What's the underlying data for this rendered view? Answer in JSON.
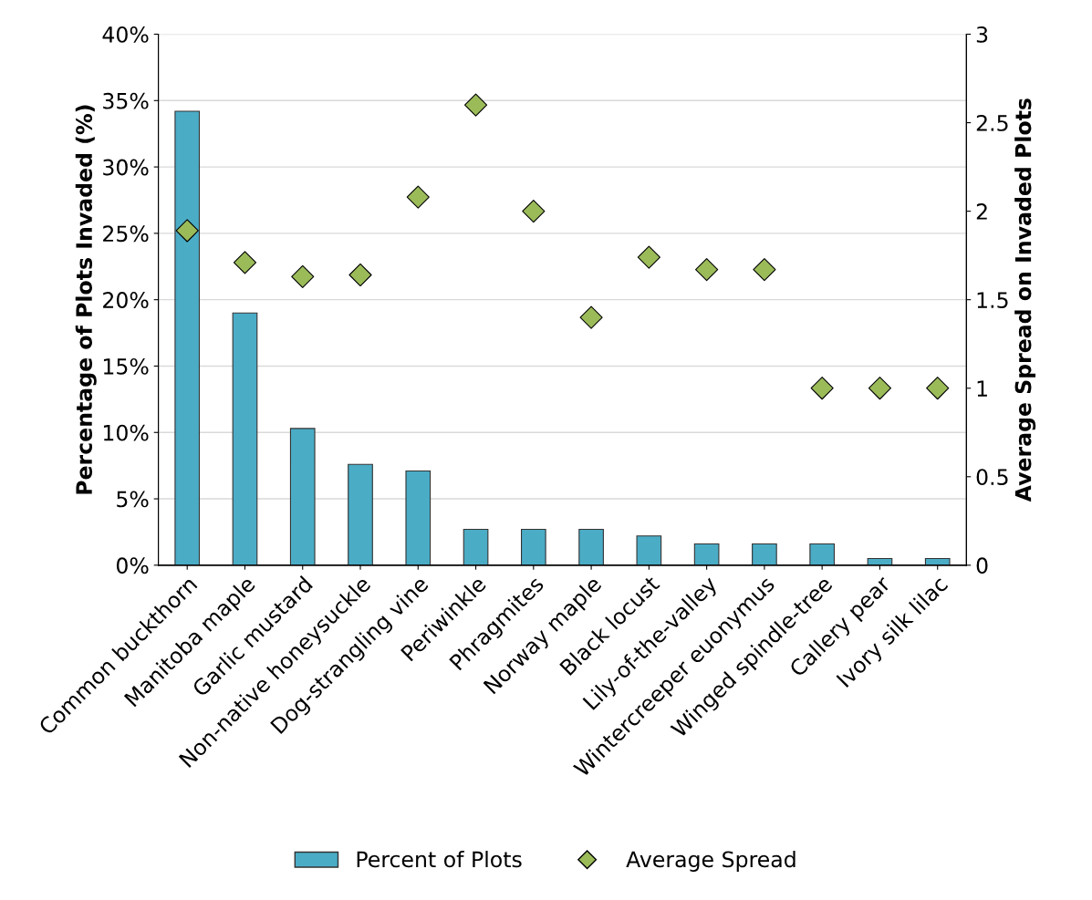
{
  "chart_data": {
    "type": "bar",
    "ylabel": "Percentage of Plots Invaded (%)",
    "y2label": "Average Spread on Invaded Plots",
    "categories": [
      "Common buckthorn",
      "Manitoba maple",
      "Garlic mustard",
      "Non-native honeysuckle",
      "Dog-strangling vine",
      "Periwinkle",
      "Phragmites",
      "Norway maple",
      "Black locust",
      "Lily-of-the-valley",
      "Wintercreeper euonymus",
      "Winged spindle-tree",
      "Callery pear",
      "Ivory silk lilac"
    ],
    "series": [
      {
        "name": "Percent of Plots",
        "color": "#4bacc6",
        "values": [
          34.2,
          19.0,
          10.3,
          7.6,
          7.1,
          2.7,
          2.7,
          2.7,
          2.2,
          1.6,
          1.6,
          1.6,
          0.5,
          0.5
        ]
      },
      {
        "name": "Average Spread",
        "type": "scatter",
        "axis": "y2",
        "marker": "diamond",
        "color": "#9bbb59",
        "values": [
          1.89,
          1.71,
          1.63,
          1.64,
          2.08,
          2.6,
          2.0,
          1.4,
          1.74,
          1.67,
          1.67,
          1.0,
          1.0,
          1.0
        ]
      }
    ],
    "ylim": [
      0,
      40
    ],
    "yticks": [
      {
        "value": 0,
        "label": "0%"
      },
      {
        "value": 5,
        "label": "5%"
      },
      {
        "value": 10,
        "label": "10%"
      },
      {
        "value": 15,
        "label": "15%"
      },
      {
        "value": 20,
        "label": "20%"
      },
      {
        "value": 25,
        "label": "25%"
      },
      {
        "value": 30,
        "label": "30%"
      },
      {
        "value": 35,
        "label": "35%"
      },
      {
        "value": 40,
        "label": "40%"
      }
    ],
    "y2lim": [
      0,
      3
    ],
    "y2ticks": [
      0,
      0.5,
      1,
      1.5,
      2,
      2.5,
      3
    ],
    "grid": "y",
    "legend": "bottom"
  }
}
